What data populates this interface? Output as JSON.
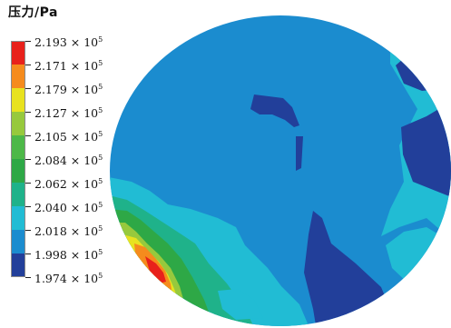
{
  "chart_data": {
    "type": "heatmap",
    "title": "压力/Pa",
    "legend": {
      "placement": "left",
      "levels": [
        {
          "label": "2.193",
          "color": "#e8211b"
        },
        {
          "label": "2.171",
          "color": "#f58b1d"
        },
        {
          "label": "2.179",
          "color": "#e8e21f"
        },
        {
          "label": "2.127",
          "color": "#97c93d"
        },
        {
          "label": "2.105",
          "color": "#4db848"
        },
        {
          "label": "2.084",
          "color": "#2ea846"
        },
        {
          "label": "2.062",
          "color": "#1fb28a"
        },
        {
          "label": "2.040",
          "color": "#21bcd4"
        },
        {
          "label": "2.018",
          "color": "#1b8ccf"
        },
        {
          "label": "1.998",
          "color": "#223f9a"
        },
        {
          "label": "1.974",
          "color": "#223f9a"
        }
      ],
      "multiplier": "× 10",
      "exponent": "5"
    }
  }
}
